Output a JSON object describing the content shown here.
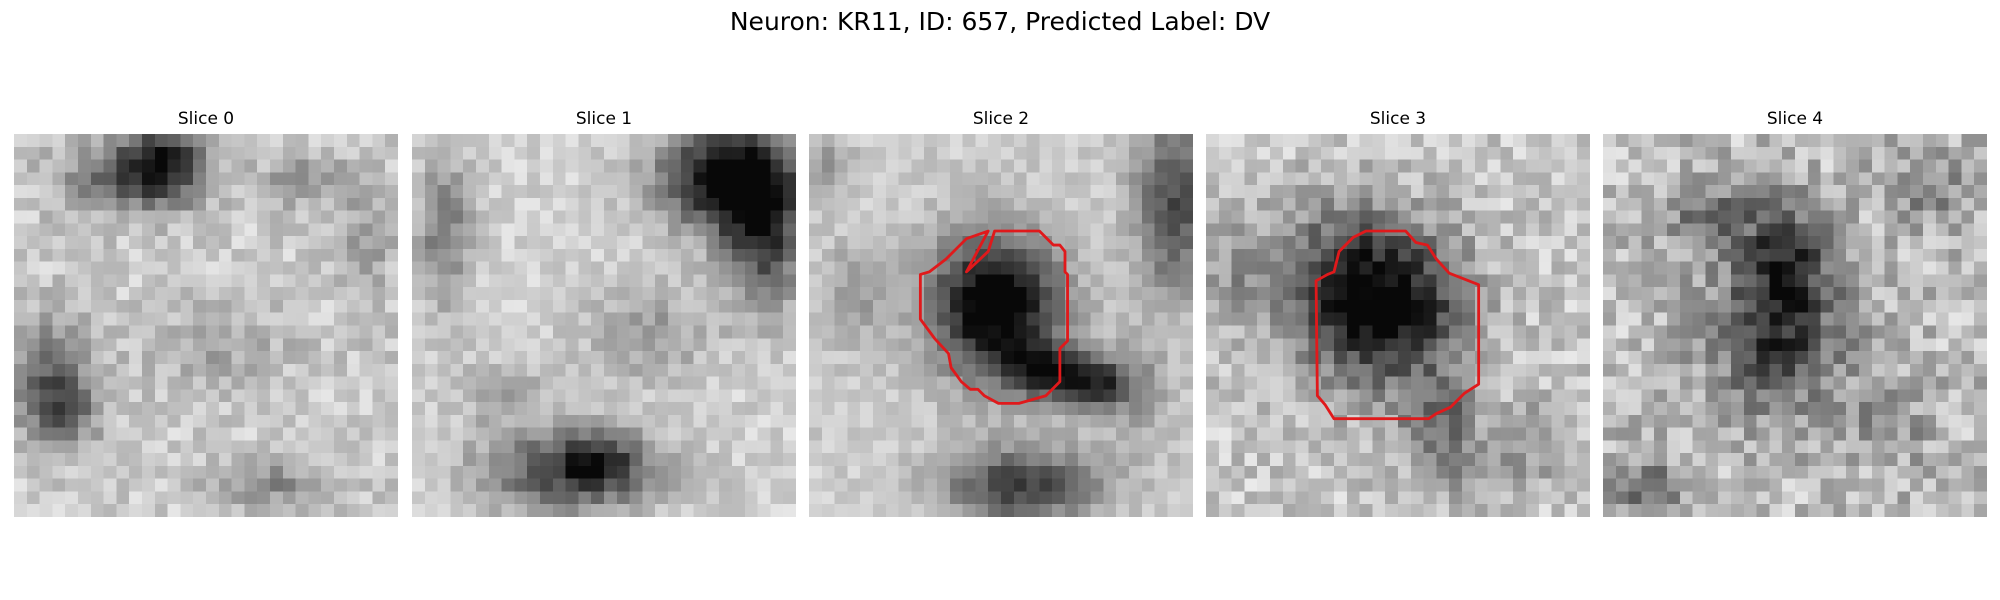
{
  "figure": {
    "title": "Neuron: KR11, ID: 657, Predicted Label: DV"
  },
  "panels": [
    {
      "title": "Slice 0",
      "has_contour": false
    },
    {
      "title": "Slice 1",
      "has_contour": false
    },
    {
      "title": "Slice 2",
      "has_contour": true
    },
    {
      "title": "Slice 3",
      "has_contour": true
    },
    {
      "title": "Slice 4",
      "has_contour": false
    }
  ],
  "colors": {
    "contour": "#e0191b",
    "background": "#ffffff"
  }
}
